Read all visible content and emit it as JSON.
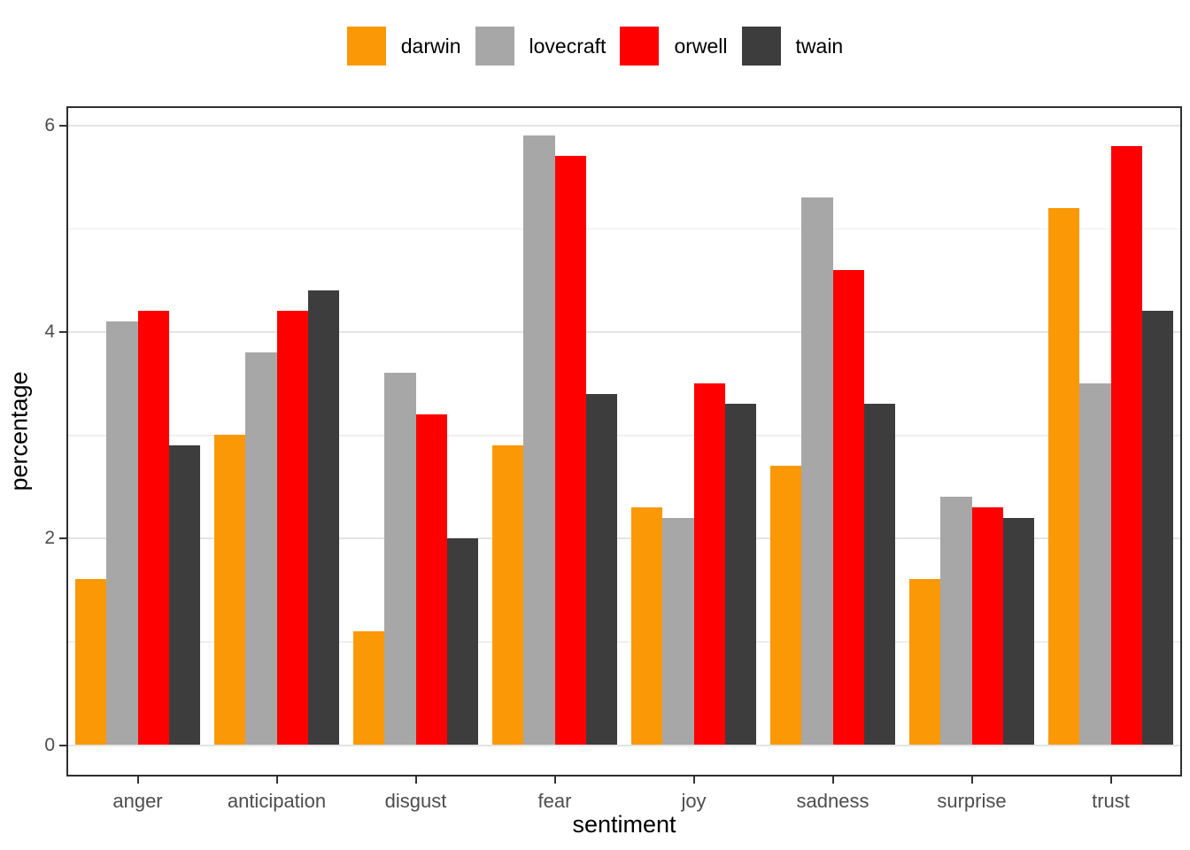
{
  "chart_data": {
    "type": "bar",
    "title": "",
    "xlabel": "sentiment",
    "ylabel": "percentage",
    "categories": [
      "anger",
      "anticipation",
      "disgust",
      "fear",
      "joy",
      "sadness",
      "surprise",
      "trust"
    ],
    "series": [
      {
        "name": "darwin",
        "color": "#FB9806",
        "values": [
          1.6,
          3.0,
          1.1,
          2.9,
          2.3,
          2.7,
          1.6,
          5.2
        ]
      },
      {
        "name": "lovecraft",
        "color": "#A7A7A7",
        "values": [
          4.1,
          3.8,
          3.6,
          5.9,
          2.2,
          5.3,
          2.4,
          3.5
        ]
      },
      {
        "name": "orwell",
        "color": "#FE0000",
        "values": [
          4.2,
          4.2,
          3.2,
          5.7,
          3.5,
          4.6,
          2.3,
          5.8
        ]
      },
      {
        "name": "twain",
        "color": "#3D3D3D",
        "values": [
          2.9,
          4.4,
          2.0,
          3.4,
          3.3,
          3.3,
          2.2,
          4.2
        ]
      }
    ],
    "y_tick_labels": [
      "0",
      "2",
      "4",
      "6"
    ],
    "y_ticks": [
      0,
      2,
      4,
      6
    ],
    "y_minor_gridlines": [
      1,
      3,
      5
    ],
    "y_major_gridlines": [
      0,
      2,
      4,
      6
    ],
    "ylim": [
      -0.3,
      6.19
    ],
    "grid": true,
    "legend_position": "top",
    "colors": {
      "panel_border": "#2F2F2F",
      "major_grid": "#E4E4E4",
      "minor_grid": "#EFEFEF",
      "tick_text": "#4D4D4D",
      "title_text": "#000000"
    }
  }
}
